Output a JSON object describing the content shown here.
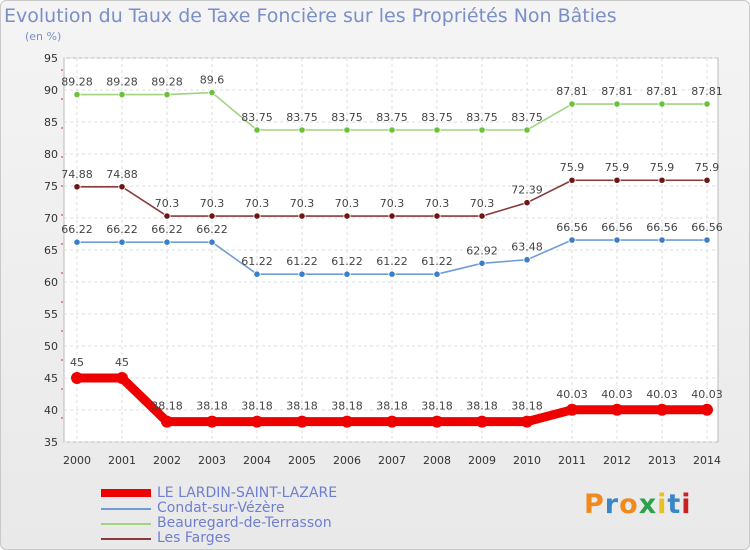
{
  "header": {
    "title": "Evolution du Taux de Taxe Foncière sur les Propriétés Non Bâties",
    "unit": "(en %)"
  },
  "logo": {
    "text": "Proxiti",
    "colors": [
      "#f08a1c",
      "#3d86c6",
      "#f08a1c",
      "#2ba34a",
      "#e8c020",
      "#3d86c6",
      "#cc2020"
    ]
  },
  "chart_data": {
    "type": "line",
    "title": "Evolution du Taux de Taxe Foncière sur les Propriétés Non Bâties",
    "ylabel": "(en %)",
    "xlabel": "",
    "ylim": [
      35,
      95
    ],
    "yticks": [
      35,
      40,
      45,
      50,
      55,
      60,
      65,
      70,
      75,
      80,
      85,
      90,
      95
    ],
    "grid": true,
    "categories": [
      "2000",
      "2001",
      "2002",
      "2003",
      "2004",
      "2005",
      "2006",
      "2007",
      "2008",
      "2009",
      "2010",
      "2011",
      "2012",
      "2013",
      "2014"
    ],
    "series": [
      {
        "name": "LE LARDIN-SAINT-LAZARE",
        "color": "#ee0000",
        "marker": "#ee0000",
        "bold": true,
        "values": [
          45,
          45,
          38.18,
          38.18,
          38.18,
          38.18,
          38.18,
          38.18,
          38.18,
          38.18,
          38.18,
          40.03,
          40.03,
          40.03,
          40.03
        ],
        "labels": [
          "45",
          "45",
          "38.18",
          "38.18",
          "38.18",
          "38.18",
          "38.18",
          "38.18",
          "38.18",
          "38.18",
          "38.18",
          "40.03",
          "40.03",
          "40.03",
          "40.03"
        ]
      },
      {
        "name": "Condat-sur-Vézère",
        "color": "#6f9ed6",
        "marker": "#3b7dc8",
        "bold": false,
        "values": [
          66.22,
          66.22,
          66.22,
          66.22,
          61.22,
          61.22,
          61.22,
          61.22,
          61.22,
          62.92,
          63.48,
          66.56,
          66.56,
          66.56,
          66.56
        ],
        "labels": [
          "66.22",
          "66.22",
          "66.22",
          "66.22",
          "61.22",
          "61.22",
          "61.22",
          "61.22",
          "61.22",
          "62.92",
          "63.48",
          "66.56",
          "66.56",
          "66.56",
          "66.56"
        ]
      },
      {
        "name": "Beauregard-de-Terrasson",
        "color": "#9fd480",
        "marker": "#6cc03c",
        "bold": false,
        "values": [
          89.28,
          89.28,
          89.28,
          89.6,
          83.75,
          83.75,
          83.75,
          83.75,
          83.75,
          83.75,
          83.75,
          87.81,
          87.81,
          87.81,
          87.81
        ],
        "labels": [
          "89.28",
          "89.28",
          "89.28",
          "89.6",
          "83.75",
          "83.75",
          "83.75",
          "83.75",
          "83.75",
          "83.75",
          "83.75",
          "87.81",
          "87.81",
          "87.81",
          "87.81"
        ]
      },
      {
        "name": "Les Farges",
        "color": "#8a3a3a",
        "marker": "#6e1616",
        "bold": false,
        "values": [
          74.88,
          74.88,
          70.3,
          70.3,
          70.3,
          70.3,
          70.3,
          70.3,
          70.3,
          70.3,
          72.39,
          75.9,
          75.9,
          75.9,
          75.9
        ],
        "labels": [
          "74.88",
          "74.88",
          "70.3",
          "70.3",
          "70.3",
          "70.3",
          "70.3",
          "70.3",
          "70.3",
          "70.3",
          "72.39",
          "75.9",
          "75.9",
          "75.9",
          "75.9"
        ]
      }
    ]
  }
}
